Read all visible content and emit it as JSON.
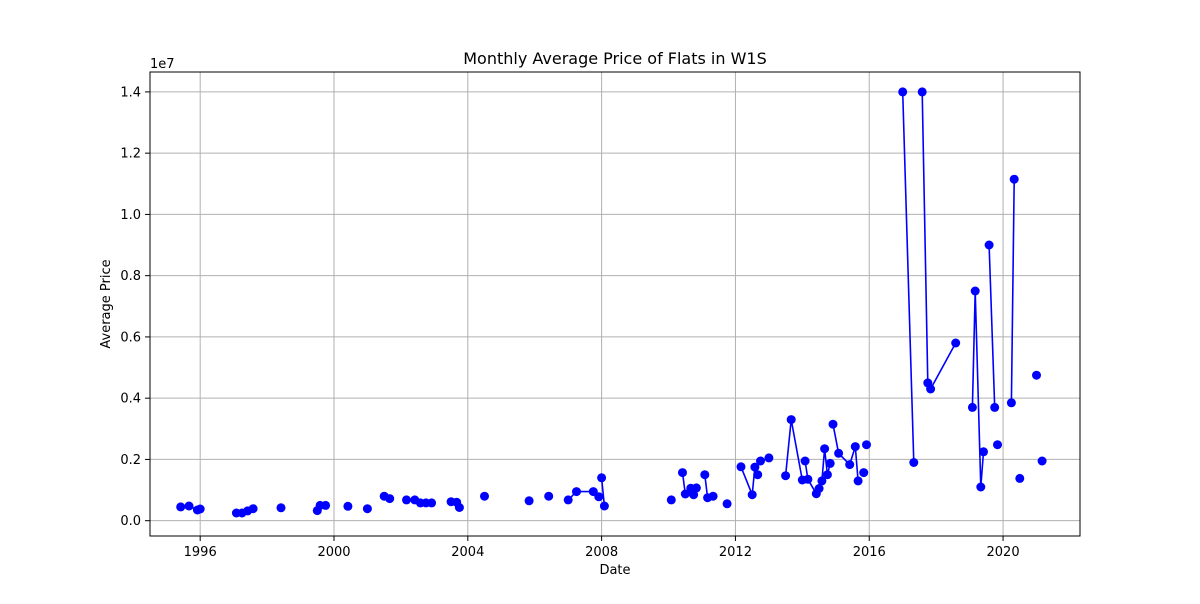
{
  "chart_data": {
    "type": "line",
    "title": "Monthly Average Price of Flats in W1S",
    "xlabel": "Date",
    "ylabel": "Average Price",
    "y_multiplier_label": "1e7",
    "grid": true,
    "xlim": [
      1994.5,
      2022.3
    ],
    "ylim": [
      -500000,
      14650000
    ],
    "x_ticks": [
      1996,
      2000,
      2004,
      2008,
      2012,
      2016,
      2020
    ],
    "x_tick_labels": [
      "1996",
      "2000",
      "2004",
      "2008",
      "2012",
      "2016",
      "2020"
    ],
    "y_ticks": [
      0,
      2000000,
      4000000,
      6000000,
      8000000,
      10000000,
      12000000,
      14000000
    ],
    "y_tick_labels": [
      "0.0",
      "0.2",
      "0.4",
      "0.6",
      "0.8",
      "1.0",
      "1.2",
      "1.4"
    ],
    "series": [
      {
        "color": "#0000ff",
        "marker": "circle",
        "points": [
          [
            "1995-06",
            450000
          ],
          [
            "1995-09",
            480000
          ],
          [
            "1995-12",
            350000
          ],
          [
            "1996-01",
            380000
          ],
          [
            "1997-02",
            250000
          ],
          [
            "1997-04",
            250000
          ],
          [
            "1997-06",
            320000
          ],
          [
            "1997-08",
            390000
          ],
          [
            "1998-06",
            420000
          ],
          [
            "1999-07",
            330000
          ],
          [
            "1999-08",
            500000
          ],
          [
            "1999-10",
            500000
          ],
          [
            "2000-06",
            470000
          ],
          [
            "2001-01",
            390000
          ],
          [
            "2001-07",
            800000
          ],
          [
            "2001-09",
            720000
          ],
          [
            "2002-03",
            680000
          ],
          [
            "2002-06",
            680000
          ],
          [
            "2002-08",
            580000
          ],
          [
            "2002-10",
            580000
          ],
          [
            "2002-12",
            580000
          ],
          [
            "2003-07",
            620000
          ],
          [
            "2003-09",
            600000
          ],
          [
            "2003-10",
            430000
          ],
          [
            "2004-07",
            800000
          ],
          [
            "2005-11",
            650000
          ],
          [
            "2006-06",
            800000
          ],
          [
            "2007-01",
            680000
          ],
          [
            "2007-04",
            950000
          ],
          [
            "2007-10",
            950000
          ],
          [
            "2007-12",
            780000
          ],
          [
            "2008-01",
            1400000
          ],
          [
            "2008-02",
            480000
          ],
          [
            "2010-02",
            680000
          ],
          [
            "2010-06",
            1570000
          ],
          [
            "2010-07",
            870000
          ],
          [
            "2010-09",
            1060000
          ],
          [
            "2010-10",
            850000
          ],
          [
            "2010-11",
            1070000
          ],
          [
            "2011-02",
            1500000
          ],
          [
            "2011-03",
            750000
          ],
          [
            "2011-05",
            800000
          ],
          [
            "2011-10",
            550000
          ],
          [
            "2012-03",
            1760000
          ],
          [
            "2012-07",
            850000
          ],
          [
            "2012-08",
            1750000
          ],
          [
            "2012-09",
            1500000
          ],
          [
            "2012-10",
            1950000
          ],
          [
            "2013-01",
            2050000
          ],
          [
            "2013-07",
            1470000
          ],
          [
            "2013-09",
            3300000
          ],
          [
            "2014-01",
            1330000
          ],
          [
            "2014-02",
            1950000
          ],
          [
            "2014-03",
            1350000
          ],
          [
            "2014-06",
            880000
          ],
          [
            "2014-07",
            1050000
          ],
          [
            "2014-08",
            1300000
          ],
          [
            "2014-09",
            2350000
          ],
          [
            "2014-10",
            1500000
          ],
          [
            "2014-11",
            1870000
          ],
          [
            "2014-12",
            3150000
          ],
          [
            "2015-02",
            2200000
          ],
          [
            "2015-06",
            1830000
          ],
          [
            "2015-08",
            2420000
          ],
          [
            "2015-09",
            1300000
          ],
          [
            "2015-11",
            1570000
          ],
          [
            "2015-12",
            2480000
          ],
          [
            "2017-01",
            14000000
          ],
          [
            "2017-05",
            1900000
          ],
          [
            "2017-08",
            14000000
          ],
          [
            "2017-10",
            4500000
          ],
          [
            "2017-11",
            4300000
          ],
          [
            "2018-08",
            5800000
          ],
          [
            "2019-02",
            3700000
          ],
          [
            "2019-03",
            7500000
          ],
          [
            "2019-05",
            1100000
          ],
          [
            "2019-06",
            2250000
          ],
          [
            "2019-08",
            9000000
          ],
          [
            "2019-10",
            3700000
          ],
          [
            "2019-11",
            2480000
          ],
          [
            "2020-04",
            3850000
          ],
          [
            "2020-05",
            11150000
          ],
          [
            "2020-07",
            1380000
          ],
          [
            "2021-01",
            4750000
          ],
          [
            "2021-03",
            1950000
          ]
        ],
        "segments": [
          [
            0,
            3
          ],
          [
            4,
            7
          ],
          [
            9,
            11
          ],
          [
            14,
            15
          ],
          [
            16,
            20
          ],
          [
            21,
            23
          ],
          [
            27,
            30
          ],
          [
            31,
            32
          ],
          [
            34,
            38
          ],
          [
            39,
            41
          ],
          [
            43,
            46
          ],
          [
            47,
            48
          ],
          [
            49,
            51
          ],
          [
            52,
            59
          ],
          [
            60,
            64
          ],
          [
            67,
            68
          ],
          [
            69,
            70
          ],
          [
            71,
            72
          ],
          [
            73,
            76
          ],
          [
            77,
            78
          ],
          [
            80,
            81
          ]
        ]
      }
    ]
  }
}
